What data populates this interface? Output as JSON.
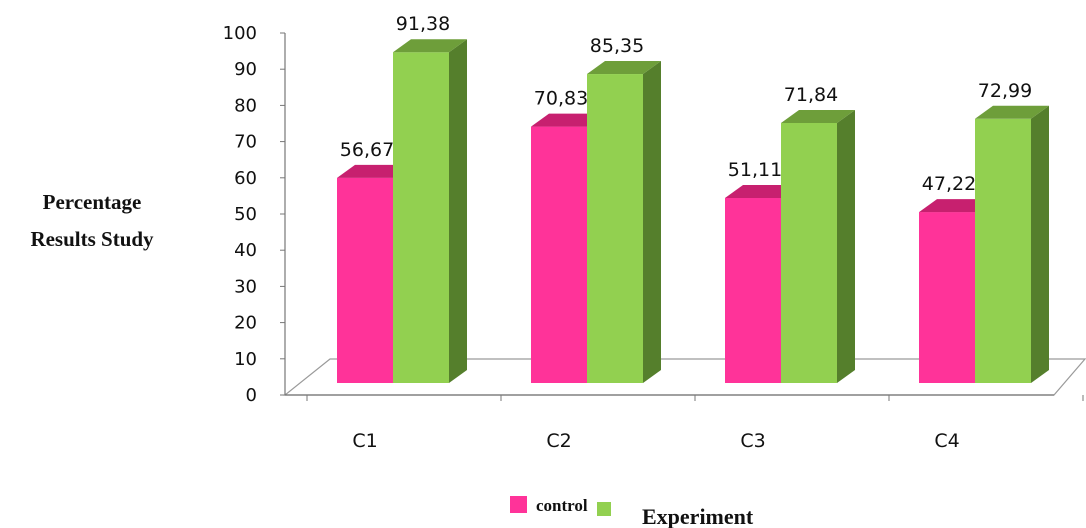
{
  "chart_data": {
    "type": "bar",
    "categories": [
      "C1",
      "C2",
      "C3",
      "C4"
    ],
    "series": [
      {
        "name": "control",
        "values": [
          56.67,
          70.83,
          51.11,
          47.22
        ],
        "labels": [
          "56,67",
          "70,83",
          "51,11",
          "47,22"
        ]
      },
      {
        "name": "Experiment",
        "values": [
          91.38,
          85.35,
          71.84,
          72.99
        ],
        "labels": [
          "91,38",
          "85,35",
          "71,84",
          "72,99"
        ]
      }
    ],
    "ylabel_lines": [
      "Percentage",
      "Results Study"
    ],
    "yticks": [
      0,
      10,
      20,
      30,
      40,
      50,
      60,
      70,
      80,
      90,
      100
    ],
    "ylim": [
      0,
      100
    ],
    "style": "3d-column",
    "legend_position": "bottom",
    "colors": {
      "control": {
        "front": "#ff3399",
        "top": "#c7206f",
        "side": "#9c1654"
      },
      "Experiment": {
        "front": "#92d050",
        "top": "#6e9e3a",
        "side": "#557f2c"
      }
    }
  }
}
